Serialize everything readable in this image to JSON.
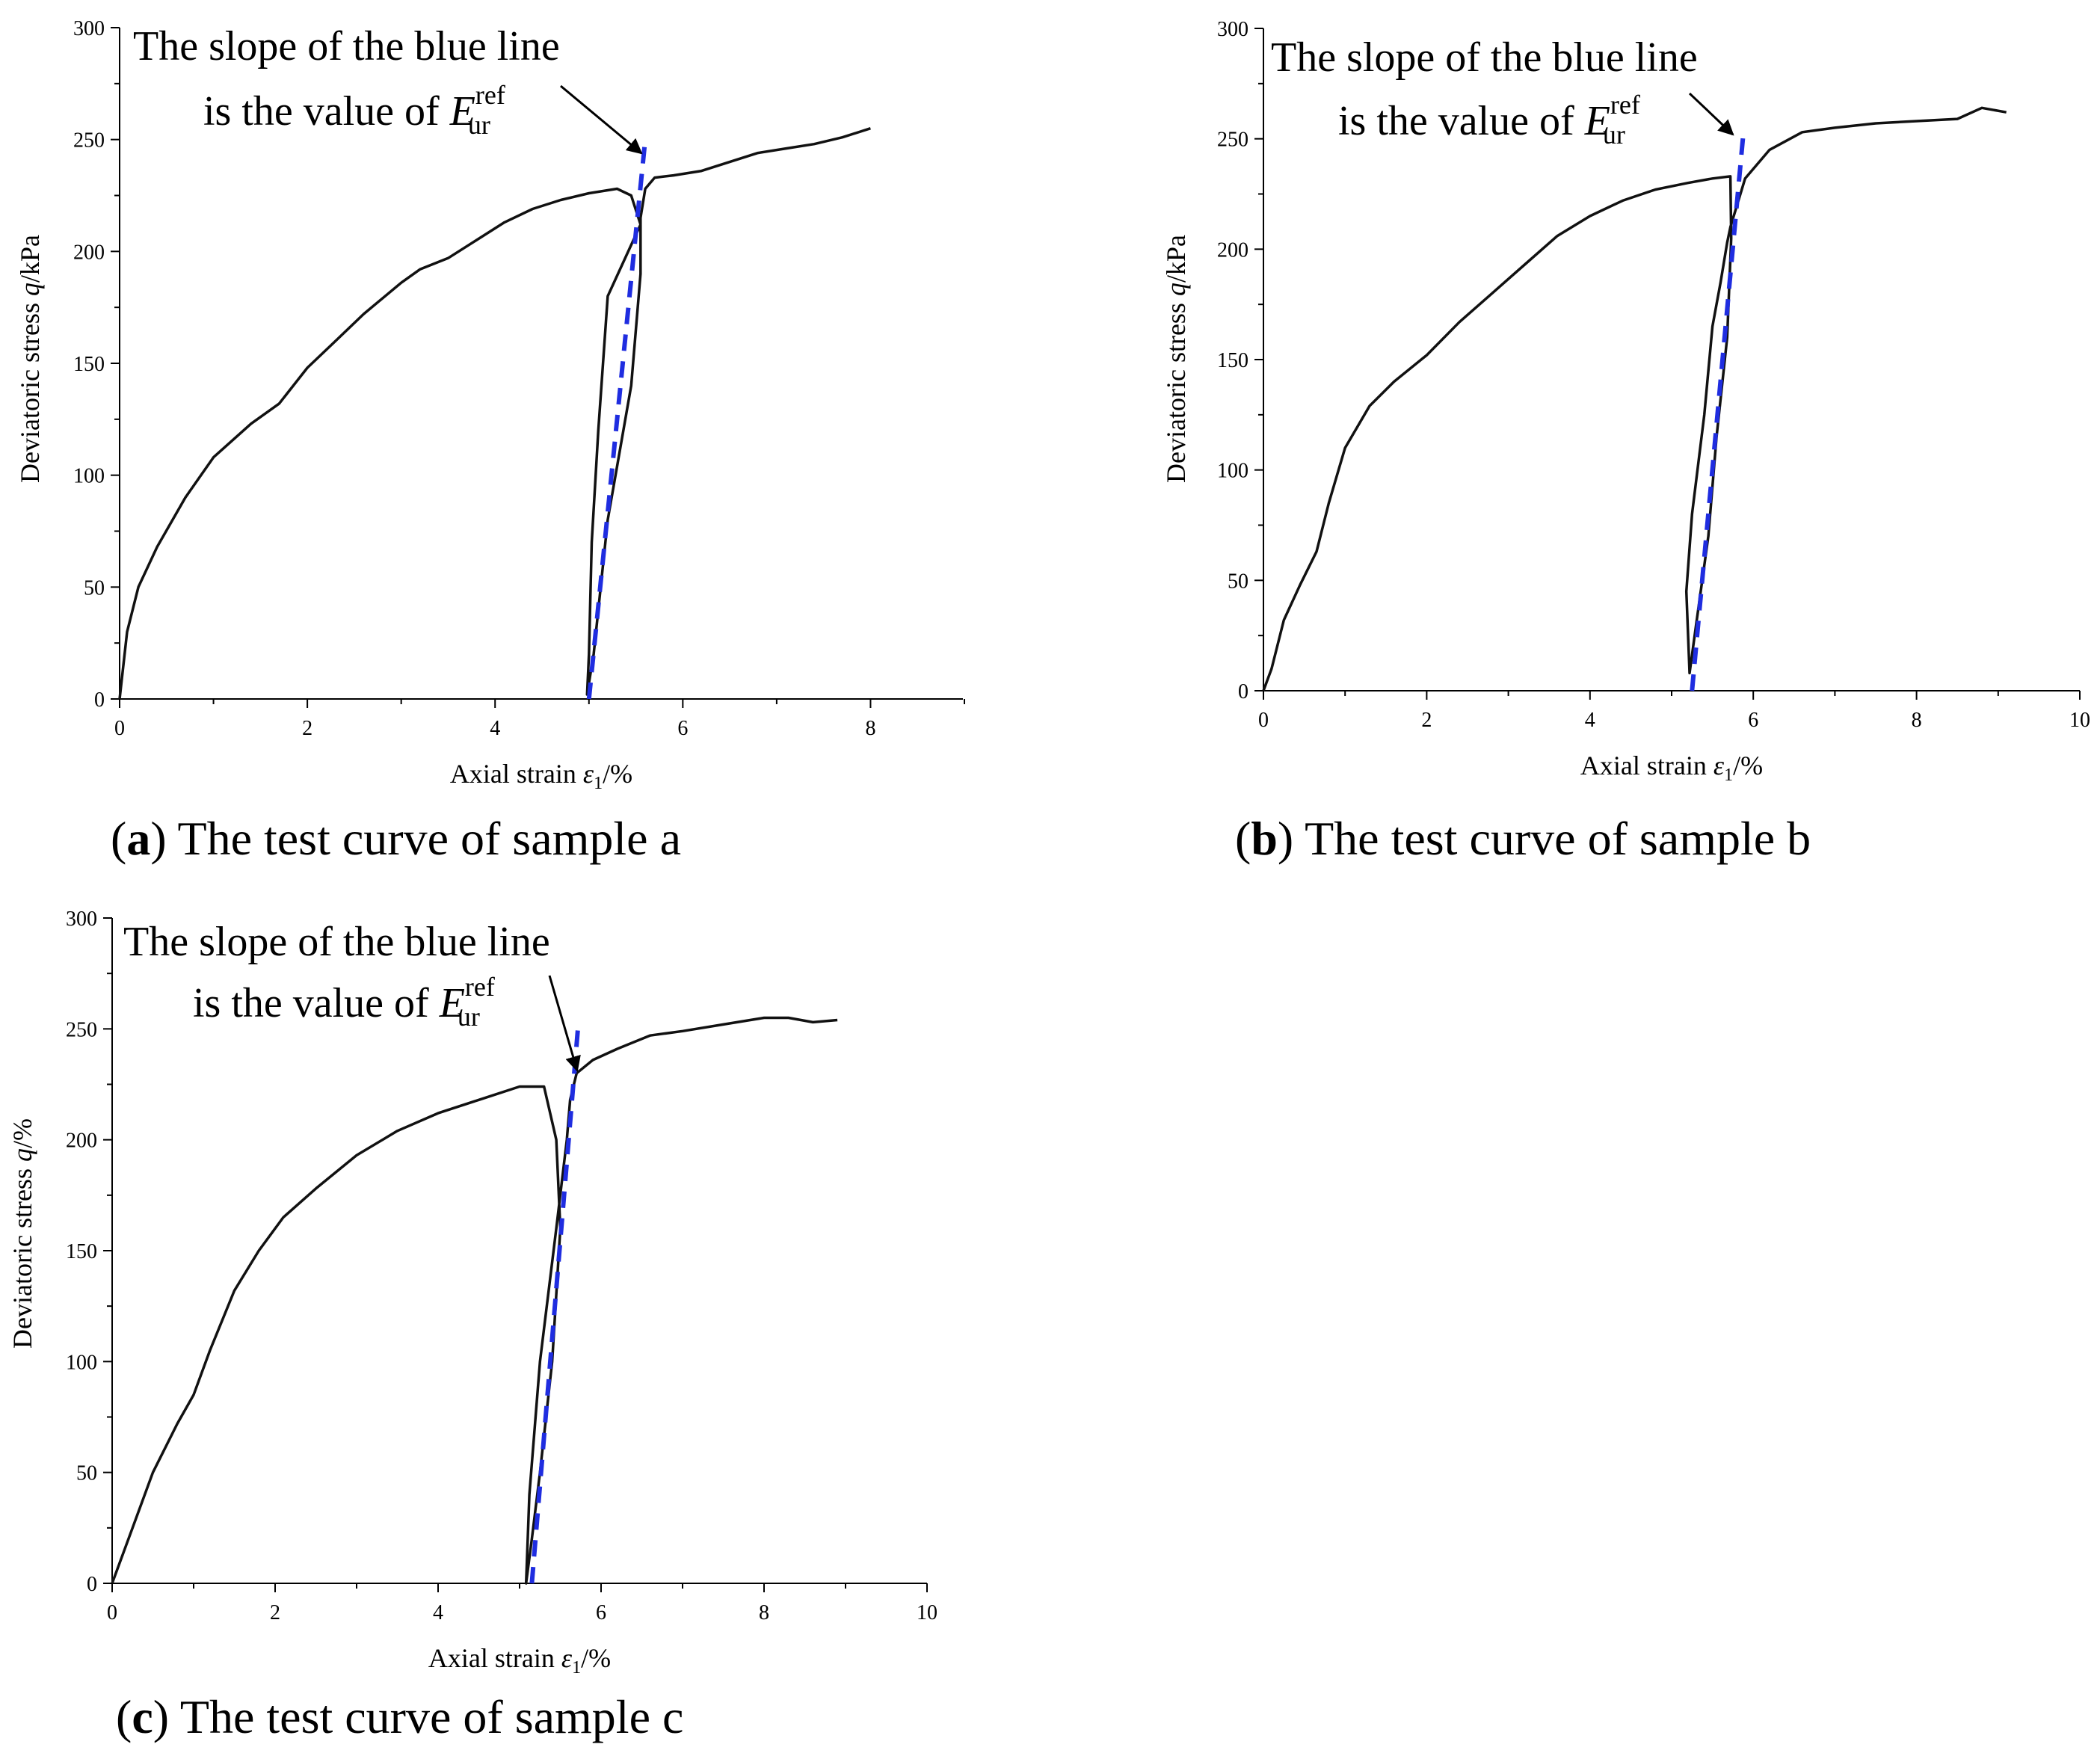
{
  "colors": {
    "curve": "#111111",
    "fit_line": "#1f2de0",
    "axis": "#000000",
    "text": "#000000"
  },
  "chart_data": [
    {
      "id": "a",
      "type": "line",
      "panel_label": "a",
      "caption": "The test curve of sample a",
      "annotation": {
        "line1": "The slope of the blue line",
        "line2_prefix": "is the value of ",
        "symbol": "E",
        "sup": "ref",
        "sub": "ur"
      },
      "xlabel_prefix": "Axial strain ",
      "xlabel_symbol": "ε",
      "xlabel_sub": "1",
      "xlabel_suffix": "/%",
      "ylabel_prefix": "Deviatoric stress ",
      "ylabel_symbol": "q",
      "ylabel_suffix": "/kPa",
      "xlim": [
        0,
        9
      ],
      "ylim": [
        0,
        300
      ],
      "xticks": [
        0,
        2,
        4,
        6,
        8
      ],
      "xminor": 1,
      "yticks": [
        0,
        50,
        100,
        150,
        200,
        250,
        300
      ],
      "yminor": 25,
      "grid": false,
      "series": [
        {
          "role": "test-curve",
          "style": "solid",
          "x": [
            0,
            0.08,
            0.2,
            0.4,
            0.7,
            1.0,
            1.4,
            1.7,
            2.0,
            2.3,
            2.6,
            3.0,
            3.2,
            3.5,
            3.8,
            4.1,
            4.4,
            4.7,
            5.0,
            5.3,
            5.45,
            5.55,
            5.2,
            5.1,
            5.03,
            5.0,
            4.98,
            5.05,
            5.2,
            5.45,
            5.55,
            5.55,
            5.6,
            5.7,
            5.9,
            6.2,
            6.5,
            6.8,
            7.1,
            7.4,
            7.7,
            8.0
          ],
          "y": [
            0,
            30,
            50,
            68,
            90,
            108,
            123,
            132,
            148,
            160,
            172,
            186,
            192,
            197,
            205,
            213,
            219,
            223,
            226,
            228,
            225,
            212,
            180,
            120,
            70,
            20,
            2,
            20,
            80,
            140,
            190,
            215,
            228,
            233,
            234,
            236,
            240,
            244,
            246,
            248,
            251,
            255
          ]
        },
        {
          "role": "unload-reload-fit",
          "style": "dashed",
          "x": [
            5.0,
            5.6
          ],
          "y": [
            0,
            250
          ]
        }
      ]
    },
    {
      "id": "b",
      "type": "line",
      "panel_label": "b",
      "caption": "The test curve of sample b",
      "annotation": {
        "line1": "The slope of the blue line",
        "line2_prefix": "is the value of ",
        "symbol": "E",
        "sup": "ref",
        "sub": "ur"
      },
      "xlabel_prefix": "Axial strain ",
      "xlabel_symbol": "ε",
      "xlabel_sub": "1",
      "xlabel_suffix": "/%",
      "ylabel_prefix": "Deviatoric stress ",
      "ylabel_symbol": "q",
      "ylabel_suffix": "/kPa",
      "xlim": [
        0,
        10
      ],
      "ylim": [
        0,
        300
      ],
      "xticks": [
        0,
        2,
        4,
        6,
        8,
        10
      ],
      "xminor": 1,
      "yticks": [
        0,
        50,
        100,
        150,
        200,
        250,
        300
      ],
      "yminor": 25,
      "grid": false,
      "series": [
        {
          "role": "test-curve",
          "style": "solid",
          "x": [
            0,
            0.1,
            0.25,
            0.45,
            0.65,
            0.8,
            1.0,
            1.3,
            1.6,
            2.0,
            2.4,
            2.8,
            3.2,
            3.6,
            4.0,
            4.4,
            4.8,
            5.2,
            5.5,
            5.72,
            5.73,
            5.68,
            5.55,
            5.45,
            5.3,
            5.22,
            5.18,
            5.25,
            5.4,
            5.5,
            5.6,
            5.68,
            5.72,
            5.9,
            6.2,
            6.6,
            7.0,
            7.5,
            8.0,
            8.5,
            8.8,
            9.1
          ],
          "y": [
            0,
            10,
            32,
            48,
            63,
            85,
            110,
            129,
            140,
            152,
            167,
            180,
            193,
            206,
            215,
            222,
            227,
            230,
            232,
            233,
            205,
            160,
            115,
            70,
            30,
            8,
            45,
            80,
            125,
            165,
            185,
            203,
            210,
            232,
            245,
            253,
            255,
            257,
            258,
            259,
            264,
            262
          ]
        },
        {
          "role": "unload-reload-fit",
          "style": "dashed",
          "x": [
            5.25,
            5.88
          ],
          "y": [
            0,
            253
          ]
        }
      ]
    },
    {
      "id": "c",
      "type": "line",
      "panel_label": "c",
      "caption": "The test curve of sample c",
      "annotation": {
        "line1": "The slope of the blue line",
        "line2_prefix": "is the value of ",
        "symbol": "E",
        "sup": "ref",
        "sub": "ur"
      },
      "xlabel_prefix": "Axial strain ",
      "xlabel_symbol": "ε",
      "xlabel_sub": "1",
      "xlabel_suffix": "/%",
      "ylabel_prefix": "Deviatoric stress ",
      "ylabel_symbol": "q",
      "ylabel_suffix": "/%",
      "xlim": [
        0,
        10
      ],
      "ylim": [
        0,
        300
      ],
      "xticks": [
        0,
        2,
        4,
        6,
        8,
        10
      ],
      "xminor": 1,
      "yticks": [
        0,
        50,
        100,
        150,
        200,
        250,
        300
      ],
      "yminor": 25,
      "grid": false,
      "series": [
        {
          "role": "test-curve",
          "style": "solid",
          "x": [
            0,
            0.25,
            0.5,
            0.8,
            1.0,
            1.2,
            1.5,
            1.8,
            2.1,
            2.5,
            3.0,
            3.5,
            4.0,
            4.5,
            5.0,
            5.3,
            5.45,
            5.5,
            5.4,
            5.25,
            5.15,
            5.08,
            5.12,
            5.25,
            5.45,
            5.58,
            5.62,
            5.7,
            5.9,
            6.2,
            6.6,
            7.0,
            7.5,
            8.0,
            8.3,
            8.6,
            8.9
          ],
          "y": [
            0,
            25,
            50,
            72,
            85,
            105,
            132,
            150,
            165,
            178,
            193,
            204,
            212,
            218,
            224,
            224,
            200,
            160,
            100,
            50,
            20,
            0,
            40,
            100,
            160,
            200,
            218,
            230,
            236,
            241,
            247,
            249,
            252,
            255,
            255,
            253,
            254
          ]
        },
        {
          "role": "unload-reload-fit",
          "style": "dashed",
          "x": [
            5.15,
            5.72
          ],
          "y": [
            0,
            252
          ]
        }
      ]
    }
  ]
}
